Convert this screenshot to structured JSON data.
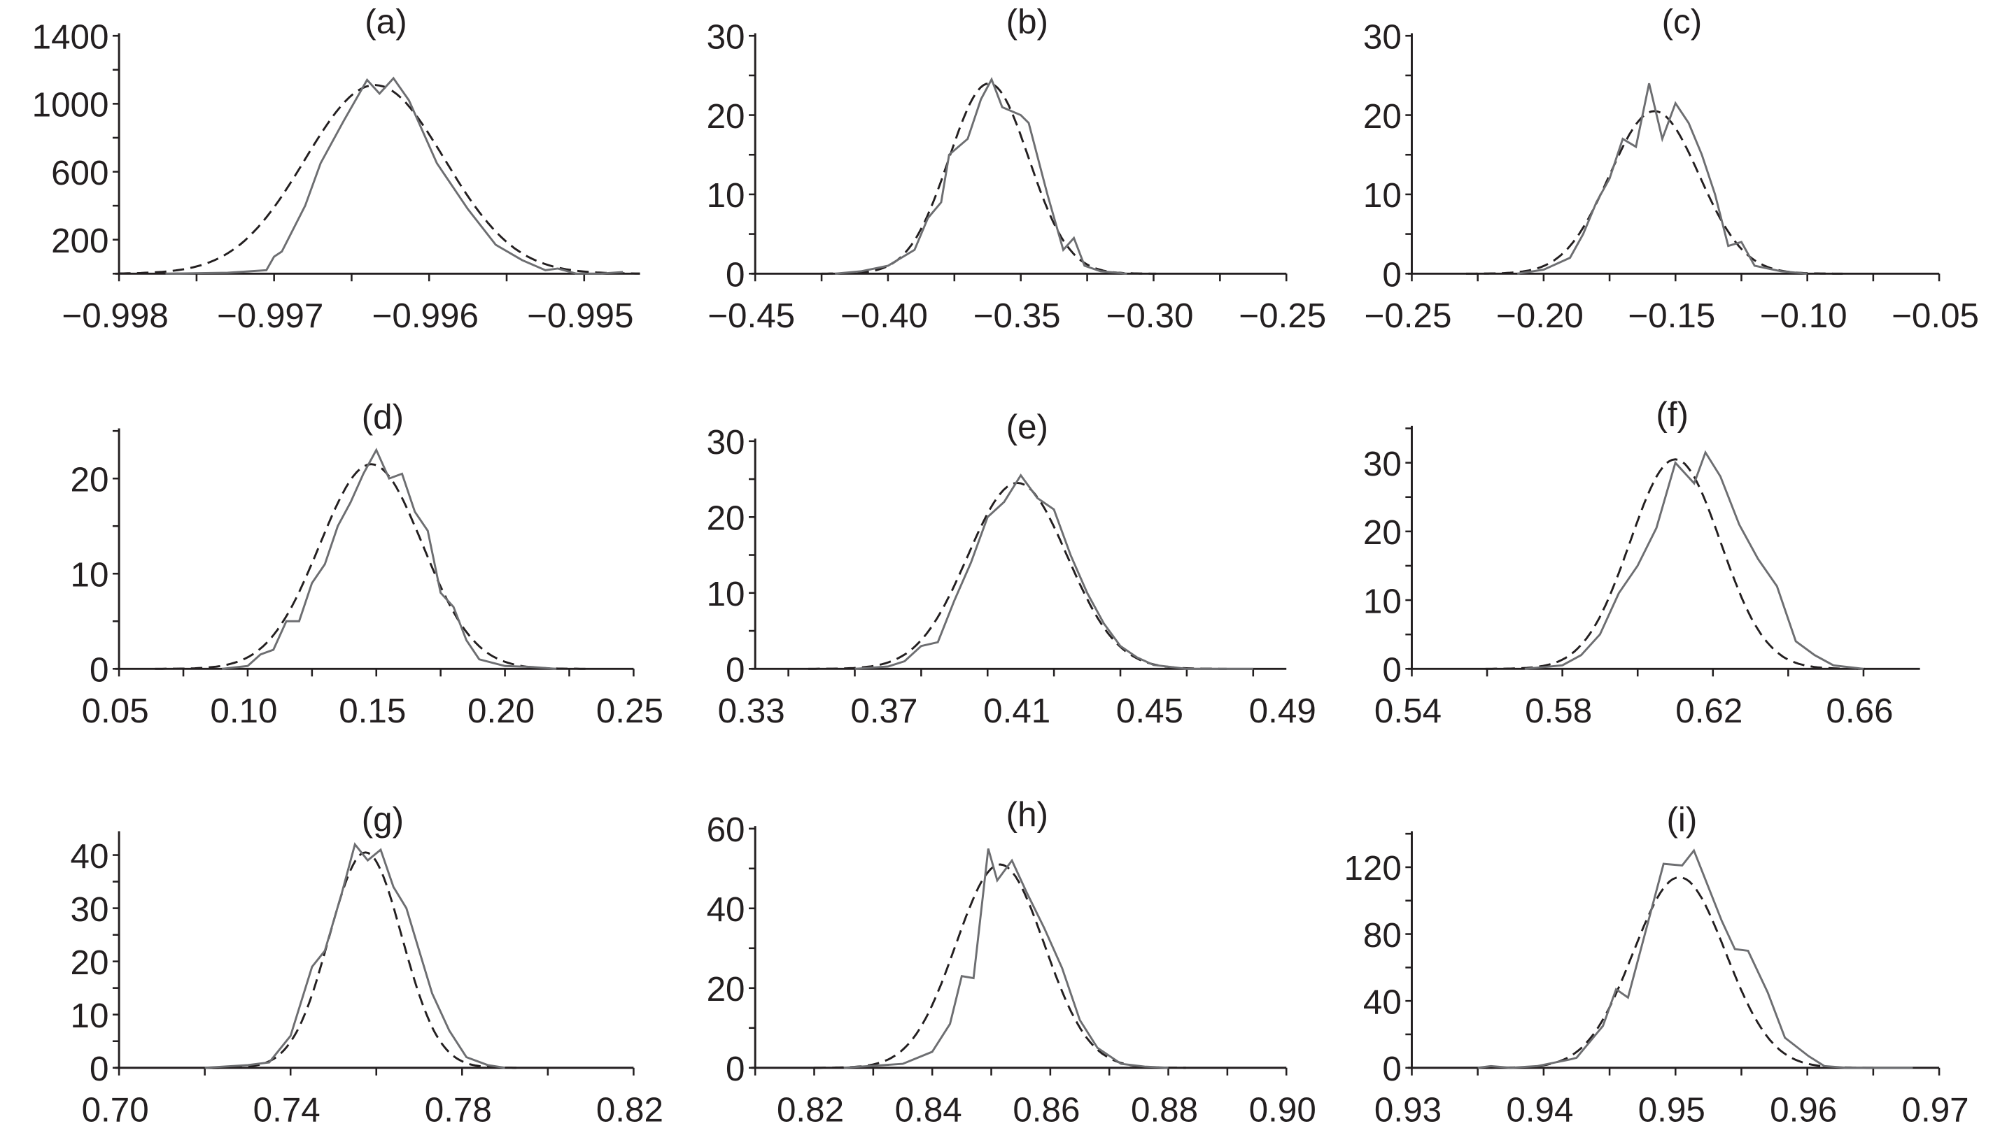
{
  "chart_data": [
    {
      "type": "line",
      "title": "(a)",
      "xlim": [
        -0.998,
        -0.99464
      ],
      "ylim": [
        0,
        1400
      ],
      "xticks": [
        -0.998,
        -0.997,
        -0.996,
        -0.995
      ],
      "xtick_labels": [
        "−0.998",
        "−0.997",
        "−0.996",
        "−0.995"
      ],
      "xminor": 0.0005,
      "yticks": [
        200,
        600,
        1000,
        1400
      ],
      "ytick_labels": [
        "200",
        "600",
        "1000",
        "1400"
      ],
      "yminor": 200,
      "fit": {
        "mean": -0.99635,
        "sd": 0.00045,
        "peak": 1110
      },
      "observed": {
        "x": [
          -0.9977,
          -0.9973,
          -0.99705,
          -0.997,
          -0.99695,
          -0.9968,
          -0.9967,
          -0.99655,
          -0.9964,
          -0.99632,
          -0.99623,
          -0.99613,
          -0.99595,
          -0.99575,
          -0.99557,
          -0.9954,
          -0.99525,
          -0.99517,
          -0.99505,
          -0.9949,
          -0.99475
        ],
        "y": [
          0,
          5,
          20,
          100,
          130,
          400,
          650,
          900,
          1140,
          1060,
          1150,
          1020,
          650,
          380,
          170,
          80,
          20,
          30,
          0,
          0,
          10
        ]
      }
    },
    {
      "type": "line",
      "title": "(b)",
      "xlim": [
        -0.45,
        -0.25
      ],
      "ylim": [
        0,
        30
      ],
      "xticks": [
        -0.45,
        -0.4,
        -0.35,
        -0.3,
        -0.25
      ],
      "xtick_labels": [
        "−0.45",
        "−0.40",
        "−0.35",
        "−0.30",
        "−0.25"
      ],
      "xminor": 0.025,
      "yticks": [
        0,
        10,
        20,
        30
      ],
      "ytick_labels": [
        "0",
        "10",
        "20",
        "30"
      ],
      "yminor": 5,
      "fit": {
        "mean": -0.362,
        "sd": 0.015,
        "peak": 24
      },
      "observed": {
        "x": [
          -0.42,
          -0.41,
          -0.4,
          -0.39,
          -0.385,
          -0.38,
          -0.377,
          -0.37,
          -0.365,
          -0.361,
          -0.357,
          -0.35,
          -0.347,
          -0.34,
          -0.334,
          -0.33,
          -0.326,
          -0.32,
          -0.31
        ],
        "y": [
          0,
          0.3,
          1,
          3,
          7,
          9,
          15,
          17,
          22,
          24.5,
          21,
          20,
          19,
          10,
          3,
          4.5,
          1,
          0.3,
          0
        ]
      }
    },
    {
      "type": "line",
      "title": "(c)",
      "xlim": [
        -0.25,
        -0.05
      ],
      "ylim": [
        0,
        30
      ],
      "xticks": [
        -0.25,
        -0.2,
        -0.15,
        -0.1,
        -0.05
      ],
      "xtick_labels": [
        "−0.25",
        "−0.20",
        "−0.15",
        "−0.10",
        "−0.05"
      ],
      "xminor": 0.025,
      "yticks": [
        0,
        10,
        20,
        30
      ],
      "ytick_labels": [
        "0",
        "10",
        "20",
        "30"
      ],
      "yminor": 5,
      "fit": {
        "mean": -0.158,
        "sd": 0.017,
        "peak": 20.5
      },
      "observed": {
        "x": [
          -0.21,
          -0.2,
          -0.19,
          -0.185,
          -0.18,
          -0.175,
          -0.17,
          -0.165,
          -0.16,
          -0.155,
          -0.15,
          -0.145,
          -0.14,
          -0.135,
          -0.13,
          -0.125,
          -0.12,
          -0.11,
          -0.1
        ],
        "y": [
          0,
          0.5,
          2,
          5,
          9,
          12,
          17,
          16,
          24,
          17,
          21.5,
          19,
          15,
          10,
          3.5,
          4,
          1,
          0.3,
          0
        ]
      }
    },
    {
      "type": "line",
      "title": "(d)",
      "xlim": [
        0.05,
        0.25
      ],
      "ylim": [
        0,
        25
      ],
      "xticks": [
        0.05,
        0.1,
        0.15,
        0.2,
        0.25
      ],
      "xtick_labels": [
        "0.05",
        "0.10",
        "0.15",
        "0.20",
        "0.25"
      ],
      "xminor": 0.025,
      "yticks": [
        0,
        10,
        20
      ],
      "ytick_labels": [
        "0",
        "10",
        "20"
      ],
      "yminor": 5,
      "fit": {
        "mean": 0.148,
        "sd": 0.02,
        "peak": 21.5
      },
      "observed": {
        "x": [
          0.09,
          0.1,
          0.105,
          0.11,
          0.115,
          0.12,
          0.125,
          0.13,
          0.135,
          0.14,
          0.145,
          0.15,
          0.155,
          0.16,
          0.165,
          0.17,
          0.175,
          0.18,
          0.185,
          0.19,
          0.2,
          0.21,
          0.22
        ],
        "y": [
          0,
          0.3,
          1.5,
          2,
          5,
          5,
          9,
          11,
          15,
          17.5,
          20.5,
          23,
          20,
          20.5,
          16.5,
          14.5,
          8,
          6.5,
          3,
          1,
          0.3,
          0.2,
          0
        ]
      }
    },
    {
      "type": "line",
      "title": "(e)",
      "xlim": [
        0.33,
        0.49
      ],
      "ylim": [
        0,
        30
      ],
      "xticks": [
        0.33,
        0.37,
        0.41,
        0.45,
        0.49
      ],
      "xtick_labels": [
        "0.33",
        "0.37",
        "0.41",
        "0.45",
        "0.49"
      ],
      "xminor": 0.02,
      "yticks": [
        0,
        10,
        20,
        30
      ],
      "ytick_labels": [
        "0",
        "10",
        "20",
        "30"
      ],
      "yminor": 5,
      "fit": {
        "mean": 0.409,
        "sd": 0.015,
        "peak": 24.5
      },
      "observed": {
        "x": [
          0.36,
          0.37,
          0.375,
          0.38,
          0.385,
          0.39,
          0.395,
          0.4,
          0.405,
          0.41,
          0.415,
          0.42,
          0.425,
          0.43,
          0.435,
          0.44,
          0.445,
          0.45,
          0.46,
          0.48
        ],
        "y": [
          0,
          0.3,
          1,
          3,
          3.5,
          9,
          14,
          20,
          22,
          25.5,
          22.5,
          21,
          15,
          10,
          6,
          3,
          1.5,
          0.5,
          0,
          0
        ]
      }
    },
    {
      "type": "line",
      "title": "(f)",
      "xlim": [
        0.54,
        0.675
      ],
      "ylim": [
        0,
        35
      ],
      "xticks": [
        0.54,
        0.58,
        0.62,
        0.66
      ],
      "xtick_labels": [
        "0.54",
        "0.58",
        "0.62",
        "0.66"
      ],
      "xminor": 0.02,
      "yticks": [
        0,
        10,
        20,
        30
      ],
      "ytick_labels": [
        "0",
        "10",
        "20",
        "30"
      ],
      "yminor": 5,
      "fit": {
        "mean": 0.61,
        "sd": 0.012,
        "peak": 30.5
      },
      "observed": {
        "x": [
          0.57,
          0.58,
          0.585,
          0.59,
          0.595,
          0.6,
          0.605,
          0.61,
          0.615,
          0.618,
          0.622,
          0.627,
          0.632,
          0.637,
          0.642,
          0.647,
          0.652,
          0.66
        ],
        "y": [
          0,
          0.5,
          2,
          5,
          11,
          15,
          20.5,
          30,
          27,
          31.5,
          28,
          21,
          16,
          12,
          4,
          2,
          0.5,
          0
        ]
      }
    },
    {
      "type": "line",
      "title": "(g)",
      "xlim": [
        0.7,
        0.82
      ],
      "ylim": [
        0,
        44
      ],
      "xticks": [
        0.7,
        0.74,
        0.78,
        0.82
      ],
      "xtick_labels": [
        "0.70",
        "0.74",
        "0.78",
        "0.82"
      ],
      "xminor": 0.02,
      "yticks": [
        0,
        10,
        20,
        30,
        40
      ],
      "ytick_labels": [
        "0",
        "10",
        "20",
        "30",
        "40"
      ],
      "yminor": 5,
      "fit": {
        "mean": 0.7575,
        "sd": 0.0085,
        "peak": 40.5
      },
      "observed": {
        "x": [
          0.72,
          0.73,
          0.735,
          0.74,
          0.745,
          0.748,
          0.752,
          0.755,
          0.758,
          0.761,
          0.764,
          0.767,
          0.77,
          0.773,
          0.777,
          0.781,
          0.786,
          0.79
        ],
        "y": [
          0,
          0.5,
          1,
          6,
          19,
          22,
          33,
          42,
          39,
          41,
          34,
          30,
          22,
          14,
          7,
          2,
          0.5,
          0
        ]
      }
    },
    {
      "type": "line",
      "title": "(h)",
      "xlim": [
        0.81,
        0.9
      ],
      "ylim": [
        0,
        60
      ],
      "xticks": [
        0.82,
        0.84,
        0.86,
        0.88,
        0.9
      ],
      "xtick_labels": [
        "0.82",
        "0.84",
        "0.86",
        "0.88",
        "0.90"
      ],
      "xminor": 0.01,
      "yticks": [
        0,
        20,
        40,
        60
      ],
      "ytick_labels": [
        "0",
        "20",
        "40",
        "60"
      ],
      "yminor": 10,
      "fit": {
        "mean": 0.8515,
        "sd": 0.0075,
        "peak": 51
      },
      "observed": {
        "x": [
          0.825,
          0.835,
          0.84,
          0.843,
          0.845,
          0.847,
          0.8495,
          0.851,
          0.8535,
          0.856,
          0.859,
          0.862,
          0.865,
          0.868,
          0.872,
          0.876,
          0.88
        ],
        "y": [
          0,
          1,
          4,
          11,
          23,
          22.5,
          55,
          47,
          52,
          44,
          35,
          25,
          12,
          5,
          1,
          0.3,
          0
        ]
      }
    },
    {
      "type": "line",
      "title": "(i)",
      "xlim": [
        0.93,
        0.97
      ],
      "ylim": [
        0,
        140
      ],
      "xticks": [
        0.93,
        0.94,
        0.95,
        0.96,
        0.97
      ],
      "xtick_labels": [
        "0.93",
        "0.94",
        "0.95",
        "0.96",
        "0.97"
      ],
      "xminor": 0.005,
      "yticks": [
        0,
        40,
        80,
        120
      ],
      "ytick_labels": [
        "0",
        "40",
        "80",
        "120"
      ],
      "yminor": 20,
      "fit": {
        "mean": 0.9503,
        "sd": 0.0035,
        "peak": 114
      },
      "observed": {
        "x": [
          0.935,
          0.936,
          0.9375,
          0.9395,
          0.942,
          0.9425,
          0.9445,
          0.9455,
          0.9464,
          0.9491,
          0.9505,
          0.9514,
          0.9535,
          0.9545,
          0.9555,
          0.957,
          0.9583,
          0.9601,
          0.9613,
          0.963,
          0.968
        ],
        "y": [
          0,
          1,
          0,
          1,
          5,
          6,
          25,
          47,
          42,
          122,
          121,
          130,
          88,
          71,
          70,
          45,
          18,
          7,
          1,
          0,
          0
        ]
      }
    }
  ],
  "colors": {
    "observed": "#6d6e71",
    "fit": "#231f20",
    "axis": "#231f20"
  }
}
